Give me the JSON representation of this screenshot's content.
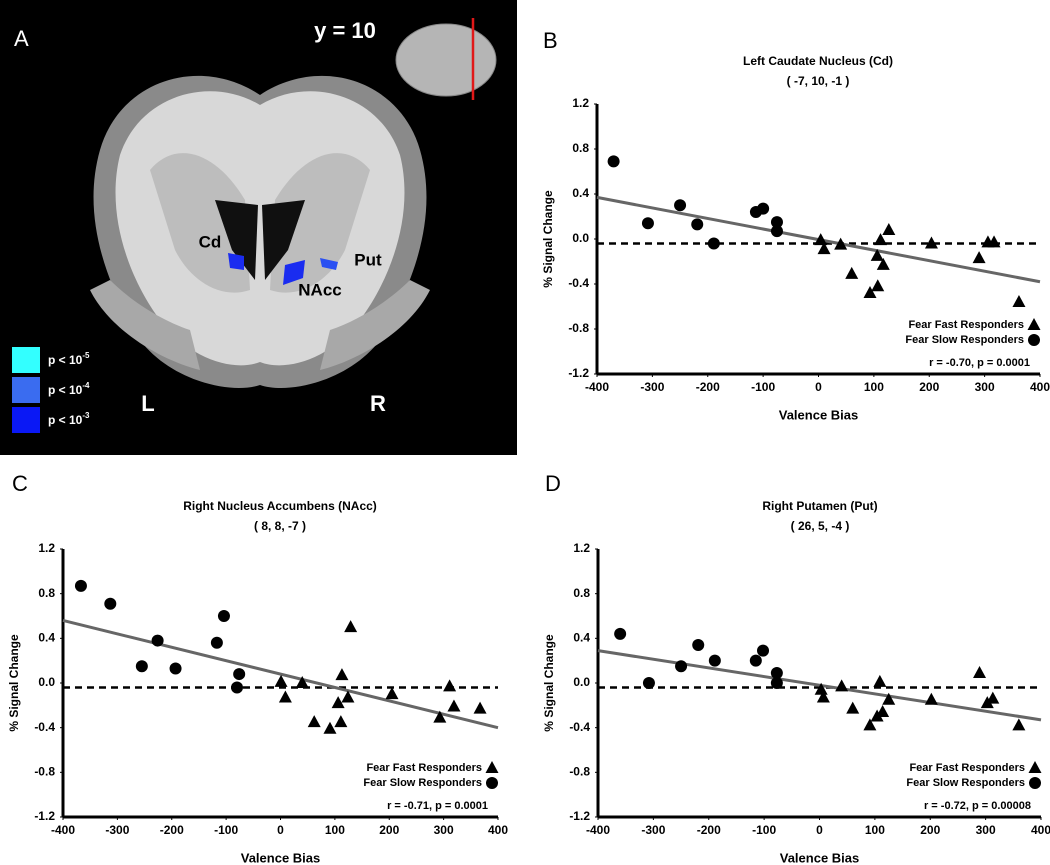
{
  "panel_a": {
    "label": "A",
    "slice": "y = 10",
    "regions": [
      "Cd",
      "Put",
      "NAcc"
    ],
    "hemispheres": [
      "L",
      "R"
    ],
    "threshold_legend": [
      {
        "text": "p < 10",
        "exponent": "-5",
        "color": "#33ffff"
      },
      {
        "text": "p < 10",
        "exponent": "-4",
        "color": "#3a6cf0"
      },
      {
        "text": "p < 10",
        "exponent": "-3",
        "color": "#0a18f5"
      }
    ]
  },
  "chart_data": [
    {
      "type": "scatter",
      "panel": "B",
      "title": "Left Caudate Nucleus (Cd)",
      "subtitle": "( -7, 10, -1 )",
      "x_label": "Valence Bias",
      "y_label": "% Signal Change",
      "annotation": "r = -0.70, p = 0.0001",
      "xlim": [
        -400,
        400
      ],
      "xticks": [
        -400,
        -300,
        -200,
        -100,
        0,
        100,
        200,
        300,
        400
      ],
      "ylim": [
        -1.2,
        1.2
      ],
      "yticks": [
        -1.2,
        -0.8,
        -0.4,
        {
          "value": 0,
          "label": "0.0"
        },
        0.4,
        0.8,
        1.2
      ],
      "reference_line": -0.04,
      "trend_line": {
        "x": [
          -400,
          400
        ],
        "y": [
          0.37,
          -0.38
        ],
        "color": "#666666"
      },
      "series": [
        {
          "name": "Fear Fast  Responders",
          "marker": "triangle",
          "color": "#000000",
          "x": [
            4,
            10,
            40,
            60,
            93,
            107,
            106,
            112,
            117,
            127,
            204,
            290,
            306,
            317,
            362
          ],
          "y": [
            -0.01,
            -0.09,
            -0.05,
            -0.31,
            -0.48,
            -0.42,
            -0.15,
            -0.01,
            -0.23,
            0.08,
            -0.04,
            -0.17,
            -0.03,
            -0.03,
            -0.56
          ]
        },
        {
          "name": "Fear Slow Responders",
          "marker": "circle",
          "color": "#000000",
          "x": [
            -370,
            -308,
            -250,
            -219,
            -189,
            -113,
            -100,
            -75,
            -75
          ],
          "y": [
            0.69,
            0.14,
            0.3,
            0.13,
            -0.04,
            0.24,
            0.27,
            0.15,
            0.07
          ]
        }
      ]
    },
    {
      "type": "scatter",
      "panel": "C",
      "title": "Right Nucleus Accumbens (NAcc)",
      "subtitle": "( 8, 8, -7 )",
      "x_label": "Valence Bias",
      "y_label": "% Signal Change",
      "annotation": "r = -0.71, p = 0.0001",
      "xlim": [
        -400,
        400
      ],
      "xticks": [
        -400,
        -300,
        -200,
        -100,
        0,
        100,
        200,
        300,
        400
      ],
      "ylim": [
        -1.2,
        1.2
      ],
      "yticks": [
        -1.2,
        -0.8,
        -0.4,
        {
          "value": 0,
          "label": "0.0"
        },
        0.4,
        0.8,
        1.2
      ],
      "reference_line": -0.04,
      "trend_line": {
        "x": [
          -400,
          400
        ],
        "y": [
          0.56,
          -0.4
        ],
        "color": "#666666"
      },
      "series": [
        {
          "name": "Fear Fast  Responders",
          "marker": "triangle",
          "color": "#000000",
          "x": [
            1,
            9,
            40,
            62,
            91,
            111,
            106,
            113,
            124,
            129,
            205,
            293,
            311,
            319,
            367
          ],
          "y": [
            0.01,
            -0.13,
            0,
            -0.35,
            -0.41,
            -0.35,
            -0.18,
            0.07,
            -0.13,
            0.5,
            -0.1,
            -0.31,
            -0.03,
            -0.21,
            -0.23
          ]
        },
        {
          "name": "Fear Slow Responders",
          "marker": "circle",
          "color": "#000000",
          "x": [
            -367,
            -313,
            -255,
            -226,
            -193,
            -117,
            -104,
            -76,
            -80
          ],
          "y": [
            0.87,
            0.71,
            0.15,
            0.38,
            0.13,
            0.36,
            0.6,
            0.08,
            -0.04
          ]
        }
      ]
    },
    {
      "type": "scatter",
      "panel": "D",
      "title": "Right Putamen (Put)",
      "subtitle": "( 26, 5, -4 )",
      "x_label": "Valence Bias",
      "y_label": "% Signal Change",
      "annotation": "r = -0.72, p = 0.00008",
      "xlim": [
        -400,
        400
      ],
      "xticks": [
        -400,
        -300,
        -200,
        -100,
        0,
        100,
        200,
        300,
        400
      ],
      "ylim": [
        -1.2,
        1.2
      ],
      "yticks": [
        -1.2,
        -0.8,
        -0.4,
        {
          "value": 0,
          "label": "0.0"
        },
        0.4,
        0.8,
        1.2
      ],
      "reference_line": -0.04,
      "trend_line": {
        "x": [
          -400,
          400
        ],
        "y": [
          0.29,
          -0.33
        ],
        "color": "#666666"
      },
      "series": [
        {
          "name": "Fear Fast  Responders",
          "marker": "triangle",
          "color": "#000000",
          "x": [
            3,
            7,
            40,
            60,
            91,
            104,
            109,
            114,
            125,
            202,
            289,
            303,
            313,
            360
          ],
          "y": [
            -0.06,
            -0.13,
            -0.03,
            -0.23,
            -0.38,
            -0.3,
            0.01,
            -0.26,
            -0.15,
            -0.15,
            0.09,
            -0.18,
            -0.14,
            -0.38
          ]
        },
        {
          "name": "Fear Slow Responders",
          "marker": "circle",
          "color": "#000000",
          "x": [
            -360,
            -308,
            -250,
            -219,
            -189,
            -115,
            -102,
            -77,
            -77
          ],
          "y": [
            0.44,
            0,
            0.15,
            0.34,
            0.2,
            0.2,
            0.29,
            0.09,
            0
          ]
        }
      ]
    }
  ]
}
